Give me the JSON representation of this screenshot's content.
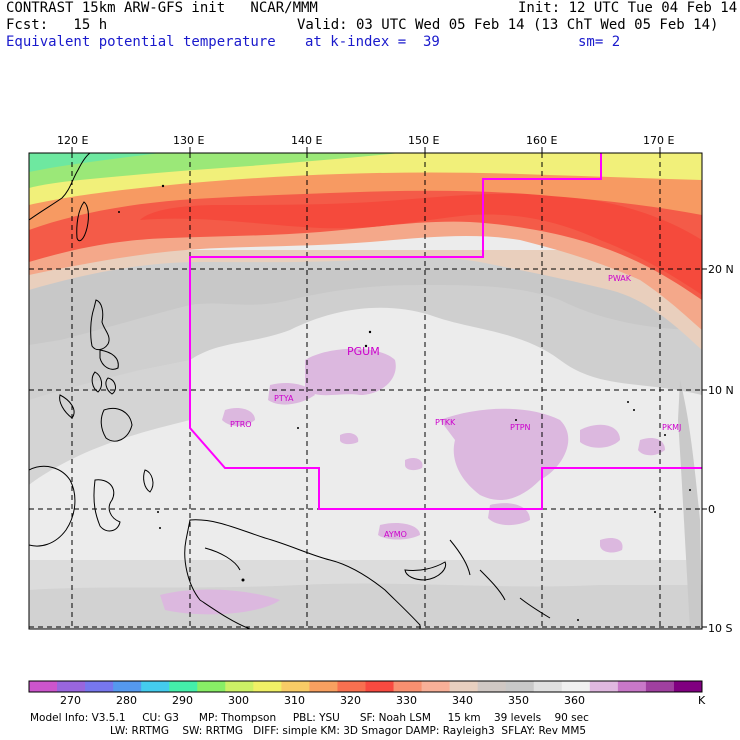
{
  "header": {
    "line1_left": "CONTRAST 15km ARW-GFS init   NCAR/MMM",
    "line1_right": "Init: 12 UTC Tue 04 Feb 14",
    "line2_left": "Fcst:   15 h",
    "line2_right": "Valid: 03 UTC Wed 05 Feb 14 (13 ChT Wed 05 Feb 14)",
    "line3_left": "Equivalent potential temperature",
    "line3_mid": "at k-index =  39",
    "line3_right": "sm= 2"
  },
  "map": {
    "lon_labels": [
      "120 E",
      "130 E",
      "140 E",
      "150 E",
      "160 E",
      "170 E"
    ],
    "lat_labels": [
      "20 N",
      "10 N",
      "0",
      "10 S"
    ],
    "stations": [
      "PGUM",
      "PTYA",
      "PTRO",
      "PTKK",
      "PTPN",
      "PKMJ",
      "PWAK",
      "AYMO"
    ],
    "outline_color": "#ff00ff"
  },
  "legend": {
    "unit": "K",
    "ticks": [
      "270",
      "280",
      "290",
      "300",
      "310",
      "320",
      "330",
      "340",
      "350",
      "360"
    ],
    "colors": [
      "#cc55cc",
      "#9966dd",
      "#7777ee",
      "#5599ee",
      "#44ccee",
      "#44eeaa",
      "#88ee66",
      "#ccf066",
      "#f0f066",
      "#f8cc66",
      "#f8a060",
      "#f87050",
      "#f84a40",
      "#f89070",
      "#f8b098",
      "#e8d0c0",
      "#d0c8c4",
      "#c8c8c8",
      "#e0e0e0",
      "#f0f0f0",
      "#e0b8e0",
      "#c878c8",
      "#a040a0",
      "#800080"
    ]
  },
  "footer": {
    "line1": "Model Info: V3.5.1     CU: G3      MP: Thompson     PBL: YSU      SF: Noah LSM     15 km    39 levels    90 sec",
    "line2": "LW: RRTMG    SW: RRTMG   DIFF: simple KM: 3D Smagor DAMP: Rayleigh3  SFLAY: Rev MM5"
  }
}
